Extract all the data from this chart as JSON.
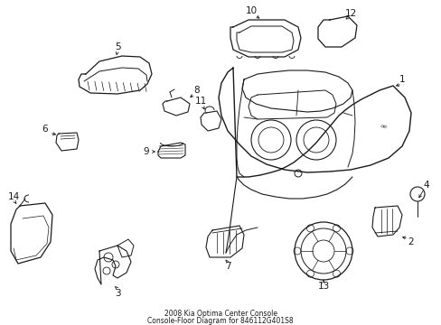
{
  "title": "2008 Kia Optima Center Console\nConsole-Floor Diagram for 846112G401S8",
  "background_color": "#ffffff",
  "line_color": "#1a1a1a",
  "fig_width": 4.89,
  "fig_height": 3.6,
  "dpi": 100
}
